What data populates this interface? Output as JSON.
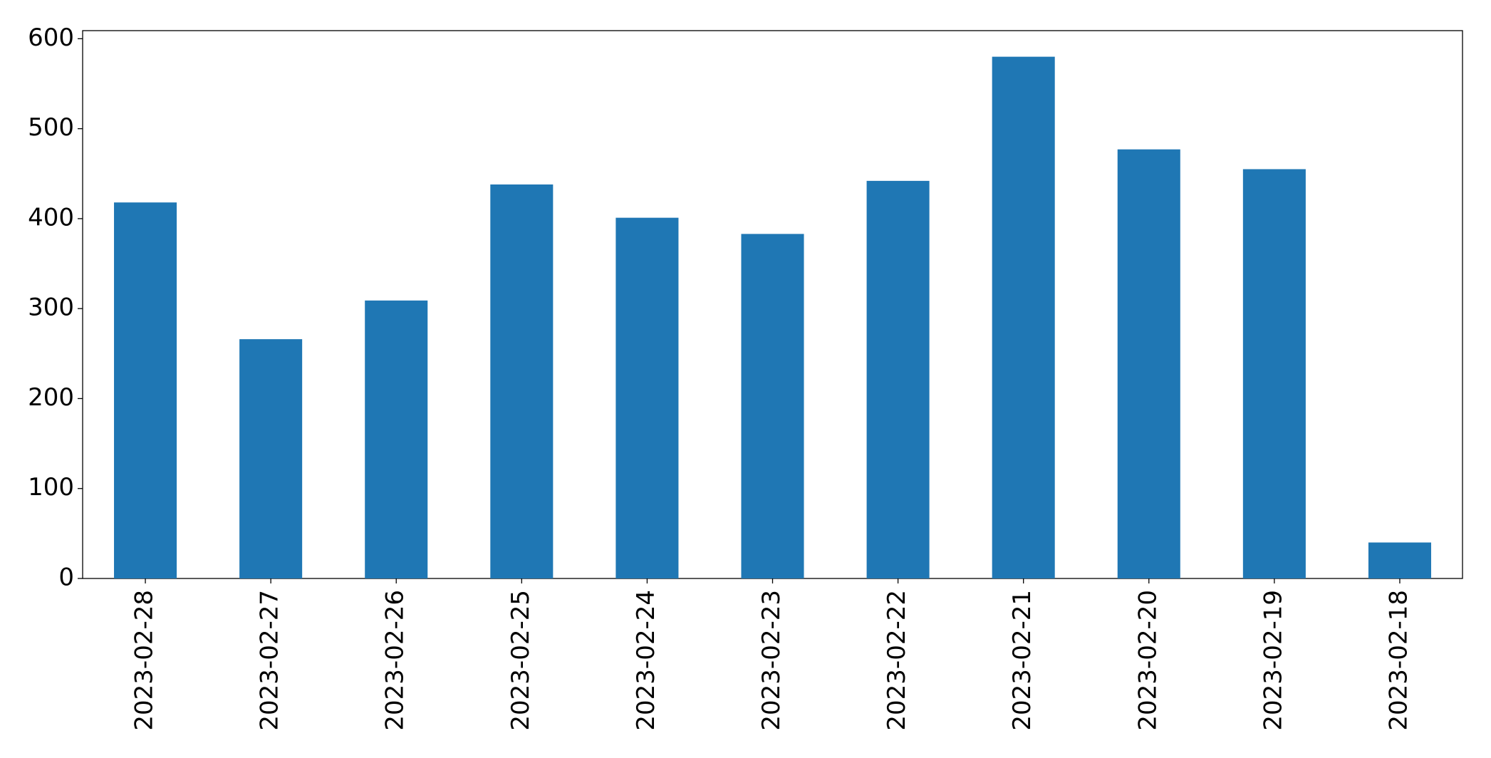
{
  "chart_data": {
    "type": "bar",
    "categories": [
      "2023-02-28",
      "2023-02-27",
      "2023-02-26",
      "2023-02-25",
      "2023-02-24",
      "2023-02-23",
      "2023-02-22",
      "2023-02-21",
      "2023-02-20",
      "2023-02-19",
      "2023-02-18"
    ],
    "values": [
      418,
      266,
      309,
      438,
      401,
      383,
      442,
      580,
      477,
      455,
      40
    ],
    "color": "#1f77b4",
    "ylim": [
      0,
      609
    ],
    "yticks": [
      0,
      100,
      200,
      300,
      400,
      500,
      600
    ],
    "grid": false
  }
}
